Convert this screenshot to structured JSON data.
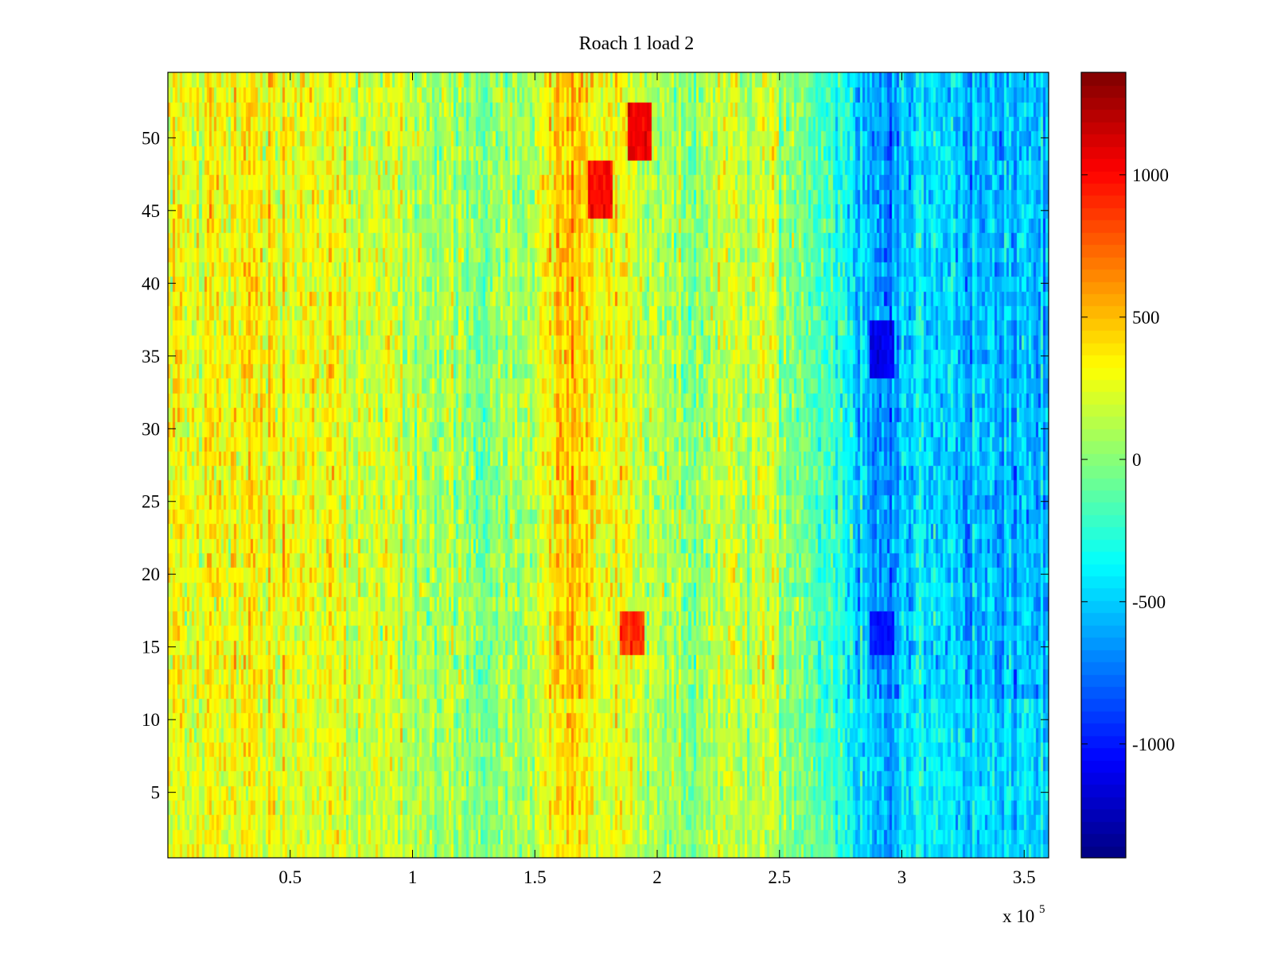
{
  "figure": {
    "background": "#ffffff"
  },
  "chart_data": {
    "type": "heatmap",
    "title": "Roach 1 load 2",
    "xlabel": "",
    "ylabel": "",
    "colormap": "jet",
    "xlim": [
      0,
      360000
    ],
    "ylim": [
      0.5,
      54.5
    ],
    "x_tick_labels": [
      "0.5",
      "1",
      "1.5",
      "2",
      "2.5",
      "3",
      "3.5"
    ],
    "x_tick_values": [
      50000,
      100000,
      150000,
      200000,
      250000,
      300000,
      350000
    ],
    "x_exponent_label": "x 10",
    "x_exponent": "5",
    "y_tick_labels": [
      "5",
      "10",
      "15",
      "20",
      "25",
      "30",
      "35",
      "40",
      "45",
      "50"
    ],
    "y_tick_values": [
      5,
      10,
      15,
      20,
      25,
      30,
      35,
      40,
      45,
      50
    ],
    "rows": 54,
    "columns": 360,
    "clim": [
      -1400,
      1360
    ],
    "colorbar_tick_labels": [
      "1000",
      "500",
      "0",
      "-500",
      "-1000"
    ],
    "colorbar_tick_values": [
      1000,
      500,
      0,
      -500,
      -1000
    ],
    "column_profile_x": [
      0,
      20000,
      50000,
      85000,
      100000,
      130000,
      150000,
      160000,
      165000,
      175000,
      190000,
      200000,
      215000,
      230000,
      245000,
      255000,
      270000,
      285000,
      293000,
      305000,
      325000,
      360000
    ],
    "column_profile_mean": [
      250,
      320,
      300,
      220,
      120,
      20,
      150,
      450,
      500,
      330,
      280,
      90,
      60,
      170,
      200,
      -70,
      -220,
      -480,
      -700,
      -430,
      -520,
      -560
    ],
    "hotspots": [
      {
        "x": 193000,
        "y_range": [
          49,
          52
        ],
        "value": 1050
      },
      {
        "x": 177000,
        "y_range": [
          45,
          48
        ],
        "value": 1000
      },
      {
        "x": 190000,
        "y_range": [
          15,
          17
        ],
        "value": 900
      },
      {
        "x": 292000,
        "y_range": [
          34,
          37
        ],
        "value": -1100
      },
      {
        "x": 292000,
        "y_range": [
          15,
          17
        ],
        "value": -1000
      }
    ]
  }
}
